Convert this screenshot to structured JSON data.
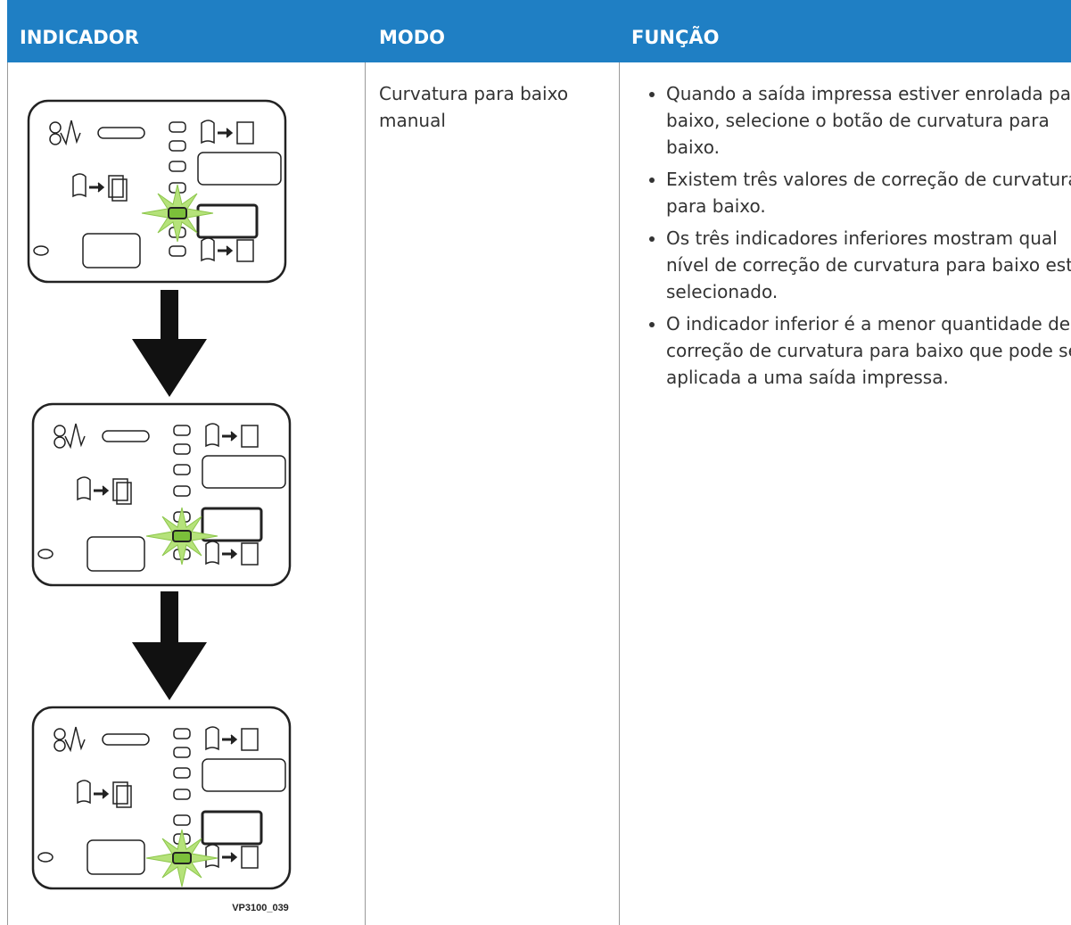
{
  "table": {
    "headers": [
      "INDICADOR",
      "MODO",
      "FUNÇÃO"
    ],
    "rows": [
      {
        "mode": "Curvatura para baixo manual",
        "figure_label": "VP3100_039",
        "function": [
          "Quando a saída impressa estiver enrolada para baixo, selecione o botão de curvatura para baixo.",
          "Existem três valores de correção de curvatura para baixo.",
          "Os três indicadores inferiores mostram qual nível de correção de curvatura para baixo está selecionado.",
          "O indicador inferior é a menor quantidade de correção de curvatura para baixo que pode ser aplicada a uma saída impressa."
        ]
      }
    ]
  }
}
